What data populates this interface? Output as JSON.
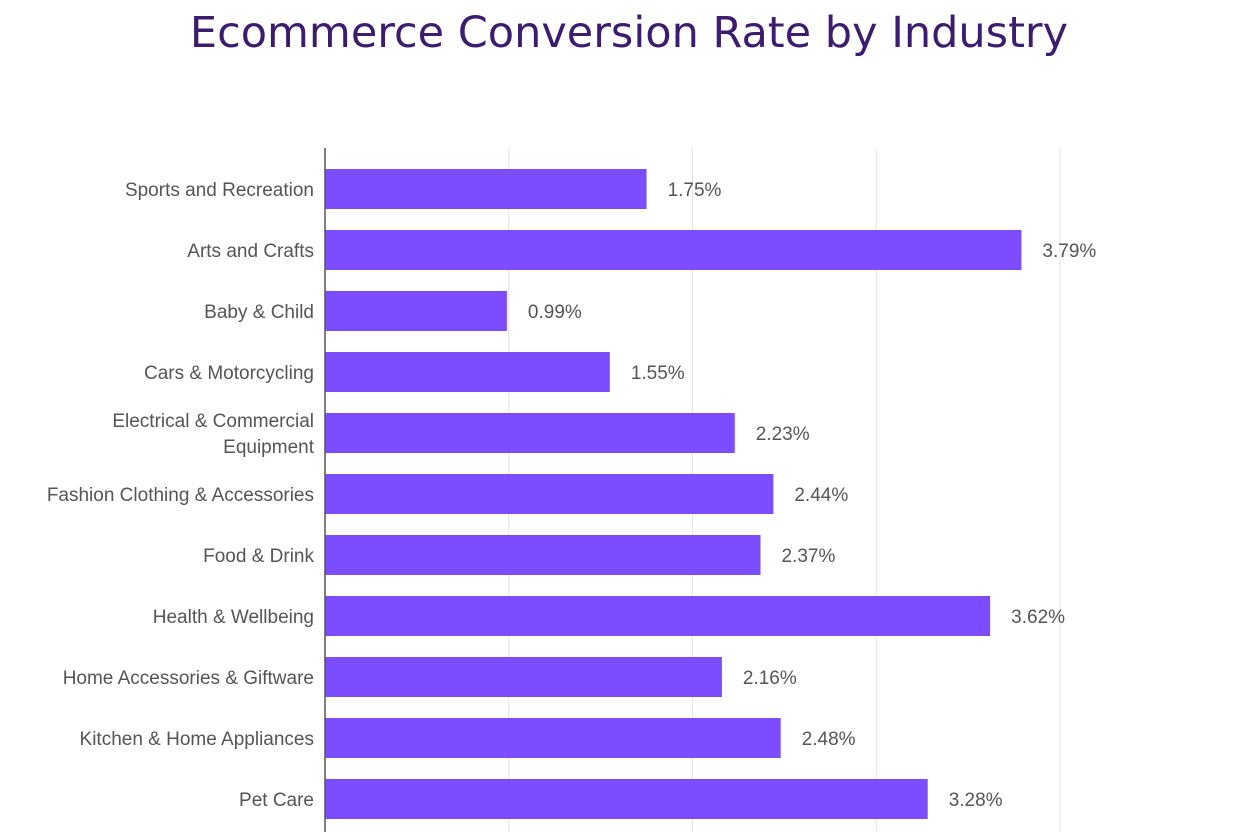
{
  "chart_data": {
    "type": "bar",
    "orientation": "horizontal",
    "title": "Ecommerce Conversion Rate by Industry",
    "xlabel": "",
    "ylabel": "",
    "xlim": [
      0,
      4
    ],
    "grid": true,
    "bar_color": "#7c4dff",
    "title_color": "#3b1c6e",
    "categories": [
      [
        "Sports and Recreation"
      ],
      [
        "Arts and Crafts"
      ],
      [
        "Baby & Child"
      ],
      [
        "Cars & Motorcycling"
      ],
      [
        "Electrical & Commercial",
        "Equipment"
      ],
      [
        "Fashion Clothing & Accessories"
      ],
      [
        "Food & Drink"
      ],
      [
        "Health & Wellbeing"
      ],
      [
        "Home Accessories & Giftware"
      ],
      [
        "Kitchen & Home Appliances"
      ],
      [
        "Pet Care"
      ]
    ],
    "values": [
      1.75,
      3.79,
      0.99,
      1.55,
      2.23,
      2.44,
      2.37,
      3.62,
      2.16,
      2.48,
      3.28
    ],
    "value_labels": [
      "1.75%",
      "3.79%",
      "0.99%",
      "1.55%",
      "2.23%",
      "2.44%",
      "2.37%",
      "3.62%",
      "2.16%",
      "2.48%",
      "3.28%"
    ]
  }
}
